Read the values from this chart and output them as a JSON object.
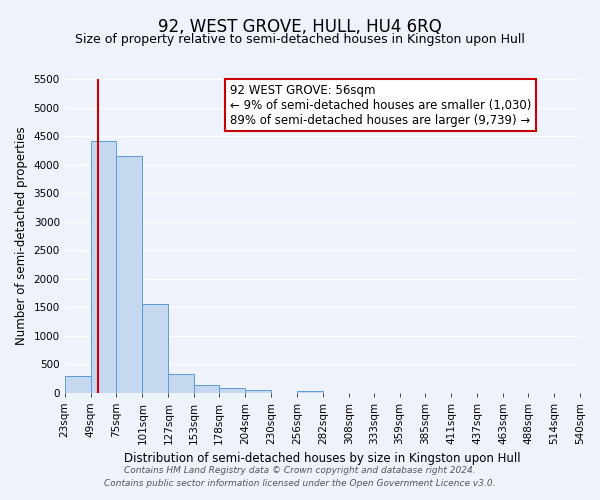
{
  "title": "92, WEST GROVE, HULL, HU4 6RQ",
  "subtitle": "Size of property relative to semi-detached houses in Kingston upon Hull",
  "xlabel": "Distribution of semi-detached houses by size in Kingston upon Hull",
  "ylabel": "Number of semi-detached properties",
  "bar_values": [
    290,
    4420,
    4150,
    1550,
    320,
    125,
    75,
    50,
    0,
    35,
    0,
    0,
    0,
    0,
    0,
    0,
    0,
    0,
    0,
    0
  ],
  "bin_edges": [
    23,
    49,
    75,
    101,
    127,
    153,
    178,
    204,
    230,
    256,
    282,
    308,
    333,
    359,
    385,
    411,
    437,
    463,
    488,
    514,
    540
  ],
  "bin_labels": [
    "23sqm",
    "49sqm",
    "75sqm",
    "101sqm",
    "127sqm",
    "153sqm",
    "178sqm",
    "204sqm",
    "230sqm",
    "256sqm",
    "282sqm",
    "308sqm",
    "333sqm",
    "359sqm",
    "385sqm",
    "411sqm",
    "437sqm",
    "463sqm",
    "488sqm",
    "514sqm",
    "540sqm"
  ],
  "bar_color": "#c5d8f0",
  "bar_edge_color": "#5b9bd5",
  "vline_x": 56,
  "vline_color": "#cc0000",
  "ylim": [
    0,
    5500
  ],
  "yticks": [
    0,
    500,
    1000,
    1500,
    2000,
    2500,
    3000,
    3500,
    4000,
    4500,
    5000,
    5500
  ],
  "annotation_title": "92 WEST GROVE: 56sqm",
  "annotation_line1": "← 9% of semi-detached houses are smaller (1,030)",
  "annotation_line2": "89% of semi-detached houses are larger (9,739) →",
  "annotation_box_facecolor": "#ffffff",
  "annotation_box_edgecolor": "#cc0000",
  "footer_line1": "Contains HM Land Registry data © Crown copyright and database right 2024.",
  "footer_line2": "Contains public sector information licensed under the Open Government Licence v3.0.",
  "bg_color": "#eef2fb",
  "grid_color": "#ffffff",
  "title_fontsize": 12,
  "subtitle_fontsize": 9,
  "axis_label_fontsize": 8.5,
  "tick_fontsize": 7.5,
  "annotation_fontsize": 8.5,
  "footer_fontsize": 6.5
}
